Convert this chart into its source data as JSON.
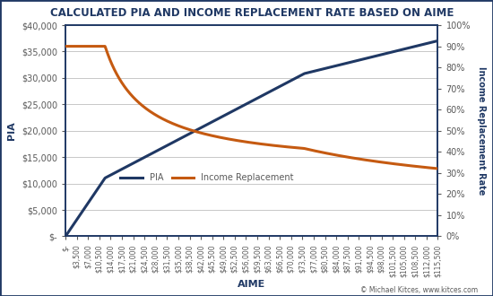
{
  "title": "CALCULATED PIA AND INCOME REPLACEMENT RATE BASED ON AIME",
  "xlabel": "AIME",
  "ylabel_left": "PIA",
  "ylabel_right": "Income Replacement Rate",
  "copyright": "© Michael Kitces, www.kitces.com",
  "legend_labels": [
    "PIA",
    "Income Replacement"
  ],
  "line_colors": [
    "#1f3864",
    "#c55a11"
  ],
  "background_color": "#ffffff",
  "border_color": "#1f3864",
  "title_color": "#1f3864",
  "axis_label_color": "#1f3864",
  "tick_label_color": "#595959",
  "grid_color": "#c8c8c8",
  "aime_values": [
    0,
    3500,
    7000,
    10500,
    14000,
    17500,
    21000,
    24500,
    28000,
    31500,
    35000,
    38500,
    42000,
    45500,
    49000,
    52500,
    56000,
    59500,
    63000,
    66500,
    70000,
    73500,
    77000,
    80500,
    84000,
    87500,
    91000,
    94500,
    98000,
    101500,
    105000,
    108500,
    112000,
    115500
  ],
  "pia_bend_point1": 12288,
  "pia_bend_point2": 74064,
  "pia_factor1": 0.9,
  "pia_factor2": 0.32,
  "pia_factor3": 0.15,
  "ylim_left": [
    0,
    40000
  ],
  "ylim_right": [
    0,
    1.0
  ],
  "yticks_left": [
    0,
    5000,
    10000,
    15000,
    20000,
    25000,
    30000,
    35000,
    40000
  ],
  "yticks_right": [
    0.0,
    0.1,
    0.2,
    0.3,
    0.4,
    0.5,
    0.6,
    0.7,
    0.8,
    0.9,
    1.0
  ],
  "ytick_labels_left": [
    "$-",
    "$5,000",
    "$10,000",
    "$15,000",
    "$20,000",
    "$25,000",
    "$30,000",
    "$35,000",
    "$40,000"
  ],
  "ytick_labels_right": [
    "0%",
    "10%",
    "20%",
    "30%",
    "40%",
    "50%",
    "60%",
    "70%",
    "80%",
    "90%",
    "100%"
  ],
  "fig_border_color": "#1f3864",
  "fig_border_lw": 2.0
}
